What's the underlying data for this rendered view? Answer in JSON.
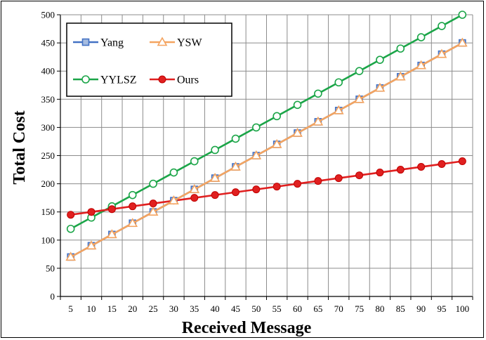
{
  "chart_data": {
    "type": "line",
    "xlabel": "Received Message",
    "ylabel": "Total Cost",
    "x": [
      5,
      10,
      15,
      20,
      25,
      30,
      35,
      40,
      45,
      50,
      55,
      60,
      65,
      70,
      75,
      80,
      85,
      90,
      95,
      100
    ],
    "ylim": [
      0,
      500
    ],
    "yticks": [
      0,
      50,
      100,
      150,
      200,
      250,
      300,
      350,
      400,
      450,
      500
    ],
    "grid": true,
    "legend_position": "top-left",
    "series": [
      {
        "name": "Yang",
        "marker": "square",
        "color": "#4472C4",
        "values": [
          70,
          90,
          110,
          130,
          150,
          170,
          190,
          210,
          230,
          250,
          270,
          290,
          310,
          330,
          350,
          370,
          390,
          410,
          430,
          450
        ]
      },
      {
        "name": "YSW",
        "marker": "triangle",
        "color": "#F4A460",
        "values": [
          70,
          90,
          110,
          130,
          150,
          170,
          190,
          210,
          230,
          250,
          270,
          290,
          310,
          330,
          350,
          370,
          390,
          410,
          430,
          450
        ]
      },
      {
        "name": "YYLSZ",
        "marker": "circle-open",
        "color": "#1BA548",
        "values": [
          120,
          140,
          160,
          180,
          200,
          220,
          240,
          260,
          280,
          300,
          320,
          340,
          360,
          380,
          400,
          420,
          440,
          460,
          480,
          500
        ]
      },
      {
        "name": "Ours",
        "marker": "circle-filled",
        "color": "#E02020",
        "values": [
          145,
          150,
          155,
          160,
          165,
          170,
          175,
          180,
          185,
          190,
          195,
          200,
          205,
          210,
          215,
          220,
          225,
          230,
          235,
          240
        ]
      }
    ]
  }
}
